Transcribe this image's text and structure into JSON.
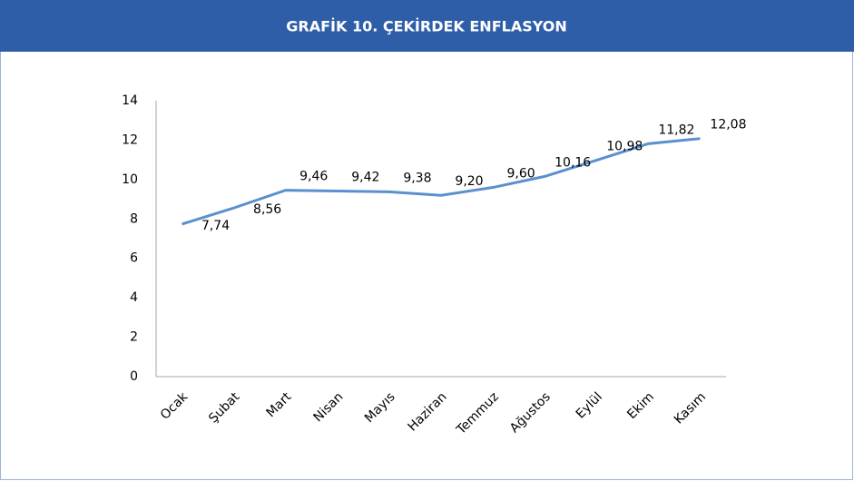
{
  "chart_data": {
    "type": "line",
    "title": "GRAFİK 10. ÇEKİRDEK ENFLASYON",
    "categories": [
      "Ocak",
      "Şubat",
      "Mart",
      "Nisan",
      "Mayıs",
      "Haziran",
      "Temmuz",
      "Ağustos",
      "Eylül",
      "Ekim",
      "Kasım"
    ],
    "series": [
      {
        "name": "Çekirdek Enflasyon",
        "color": "#5b8fd0",
        "values": [
          7.74,
          8.56,
          9.46,
          9.42,
          9.38,
          9.2,
          9.6,
          10.16,
          10.98,
          11.82,
          12.08
        ],
        "value_labels": [
          "7,74",
          "8,56",
          "9,46",
          "9,42",
          "9,38",
          "9,20",
          "9,60",
          "10,16",
          "10,98",
          "11,82",
          "12,08"
        ]
      }
    ],
    "ylim": [
      0,
      14
    ],
    "yticks": [
      0,
      2,
      4,
      6,
      8,
      10,
      12,
      14
    ],
    "grid": false
  }
}
